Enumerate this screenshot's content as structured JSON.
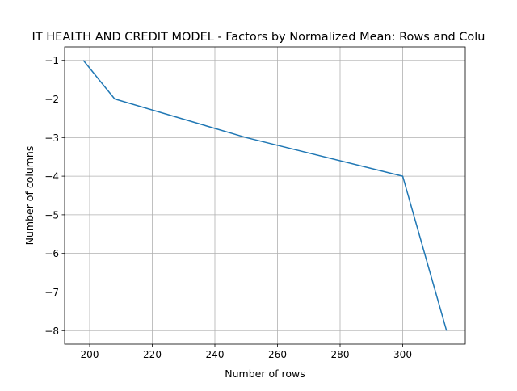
{
  "chart_data": {
    "type": "line",
    "title": "IT HEALTH AND CREDIT MODEL - Factors by Normalized Mean: Rows and Colu",
    "xlabel": "Number of rows",
    "ylabel": "Number of columns",
    "x": [
      198,
      208,
      250,
      300,
      314
    ],
    "y": [
      -1,
      -2,
      -3,
      -4,
      -8
    ],
    "xlim": [
      192,
      320
    ],
    "ylim": [
      -8.35,
      -0.65
    ],
    "xticks": [
      200,
      220,
      240,
      260,
      280,
      300
    ],
    "yticks": [
      -1,
      -2,
      -3,
      -4,
      -5,
      -6,
      -7,
      -8
    ],
    "grid": true,
    "line_color": "#1f77b4"
  }
}
